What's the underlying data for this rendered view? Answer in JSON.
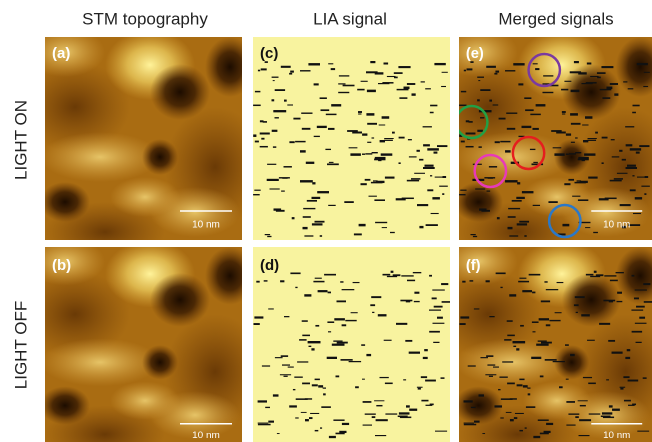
{
  "columns": [
    "STM topography",
    "LIA signal",
    "Merged signals"
  ],
  "rows": [
    "LIGHT ON",
    "LIGHT OFF"
  ],
  "panels": [
    {
      "label": "(a)",
      "scale_bar": "10 nm"
    },
    {
      "label": "(c)"
    },
    {
      "label": "(e)",
      "scale_bar": "10 nm"
    },
    {
      "label": "(b)",
      "scale_bar": "10 nm"
    },
    {
      "label": "(d)"
    },
    {
      "label": "(f)",
      "scale_bar": "10 nm"
    }
  ]
}
